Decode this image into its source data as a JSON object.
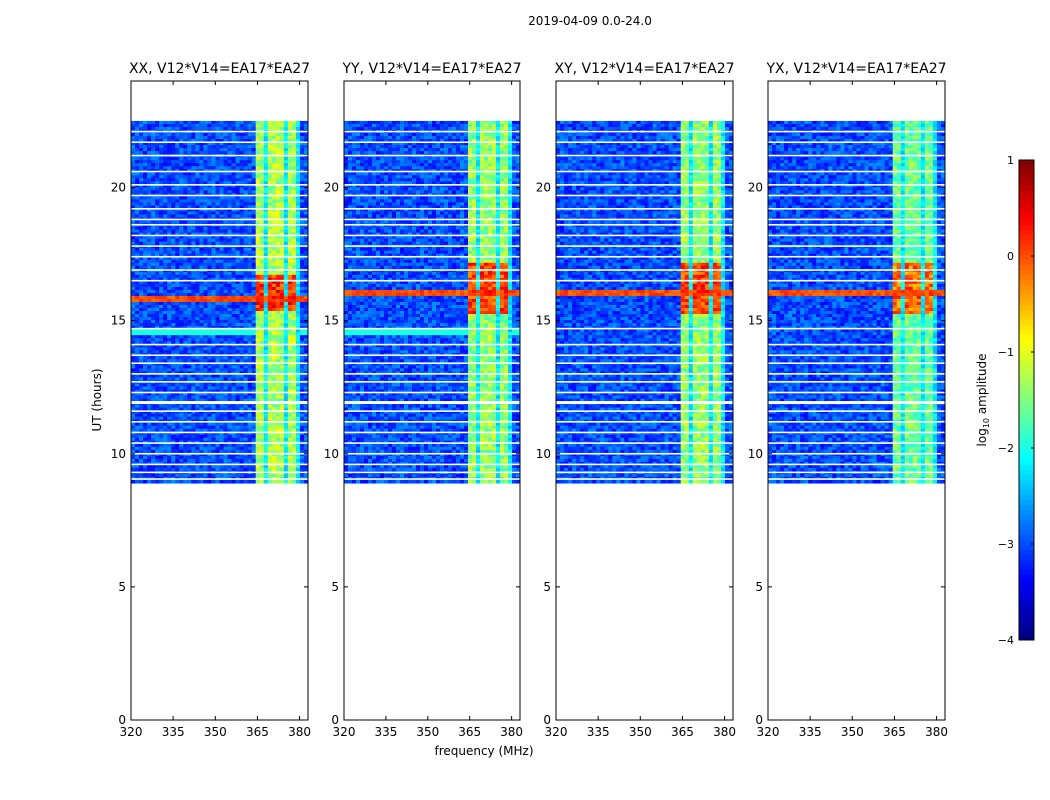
{
  "figure": {
    "suptitle": "2019-04-09 0.0-24.0",
    "xlabel": "frequency (MHz)",
    "ylabel": "UT (hours)"
  },
  "colors": {
    "colormap": [
      "#00007f",
      "#0000ff",
      "#007fff",
      "#00ffff",
      "#7fff7f",
      "#ffff00",
      "#ff7f00",
      "#ff0000",
      "#7f0000"
    ],
    "background": "#ffffff",
    "axis": "#000000"
  },
  "colorbar": {
    "label": "log10 amplitude",
    "label_prefix": "log",
    "label_subscript": "10",
    "label_suffix": " amplitude",
    "min": -4,
    "max": 1,
    "ticks": [
      1,
      0,
      -1,
      -2,
      -3,
      -4
    ],
    "tick_labels": [
      "1",
      "0",
      "−1",
      "−2",
      "−3",
      "−4"
    ]
  },
  "chart_data": [
    {
      "type": "heatmap",
      "title": "XX, V12*V14=EA17*EA27",
      "xlabel": "frequency (MHz)",
      "ylabel": "UT (hours)",
      "xlim": [
        320,
        383
      ],
      "ylim": [
        0,
        24
      ],
      "xticks": [
        320,
        335,
        350,
        365,
        380
      ],
      "yticks": [
        0,
        5,
        10,
        15,
        20
      ],
      "data_ut_range": [
        8.9,
        22.5
      ],
      "rfi_freq_range": [
        364,
        380
      ],
      "strong_ut_range": [
        15.4,
        16.7
      ],
      "strong_band_ut": 15.85,
      "background_log10_amplitude": -3.0,
      "rfi_log10_amplitude": -1.3,
      "rfi_peak_log10_amplitude": 0.3
    },
    {
      "type": "heatmap",
      "title": "YY, V12*V14=EA17*EA27",
      "xlabel": "frequency (MHz)",
      "ylabel": "UT (hours)",
      "xlim": [
        320,
        383
      ],
      "ylim": [
        0,
        24
      ],
      "xticks": [
        320,
        335,
        350,
        365,
        380
      ],
      "yticks": [
        0,
        5,
        10,
        15,
        20
      ],
      "data_ut_range": [
        8.9,
        22.5
      ],
      "rfi_freq_range": [
        364,
        380
      ],
      "strong_ut_range": [
        15.3,
        17.2
      ],
      "strong_band_ut": 16.0,
      "background_log10_amplitude": -3.0,
      "rfi_log10_amplitude": -1.4,
      "rfi_peak_log10_amplitude": 0.2
    },
    {
      "type": "heatmap",
      "title": "XY, V12*V14=EA17*EA27",
      "xlabel": "frequency (MHz)",
      "ylabel": "UT (hours)",
      "xlim": [
        320,
        383
      ],
      "ylim": [
        0,
        24
      ],
      "xticks": [
        320,
        335,
        350,
        365,
        380
      ],
      "yticks": [
        0,
        5,
        10,
        15,
        20
      ],
      "data_ut_range": [
        8.9,
        22.5
      ],
      "rfi_freq_range": [
        364,
        380
      ],
      "strong_ut_range": [
        15.3,
        17.2
      ],
      "strong_band_ut": 16.0,
      "background_log10_amplitude": -3.0,
      "rfi_log10_amplitude": -1.4,
      "rfi_peak_log10_amplitude": 0.2
    },
    {
      "type": "heatmap",
      "title": "YX, V12*V14=EA17*EA27",
      "xlabel": "frequency (MHz)",
      "ylabel": "UT (hours)",
      "xlim": [
        320,
        383
      ],
      "ylim": [
        0,
        24
      ],
      "xticks": [
        320,
        335,
        350,
        365,
        380
      ],
      "yticks": [
        0,
        5,
        10,
        15,
        20
      ],
      "data_ut_range": [
        8.9,
        22.5
      ],
      "rfi_freq_range": [
        364,
        380
      ],
      "strong_ut_range": [
        15.3,
        17.2
      ],
      "strong_band_ut": 16.0,
      "background_log10_amplitude": -3.0,
      "rfi_log10_amplitude": -1.6,
      "rfi_peak_log10_amplitude": 0.0
    }
  ]
}
